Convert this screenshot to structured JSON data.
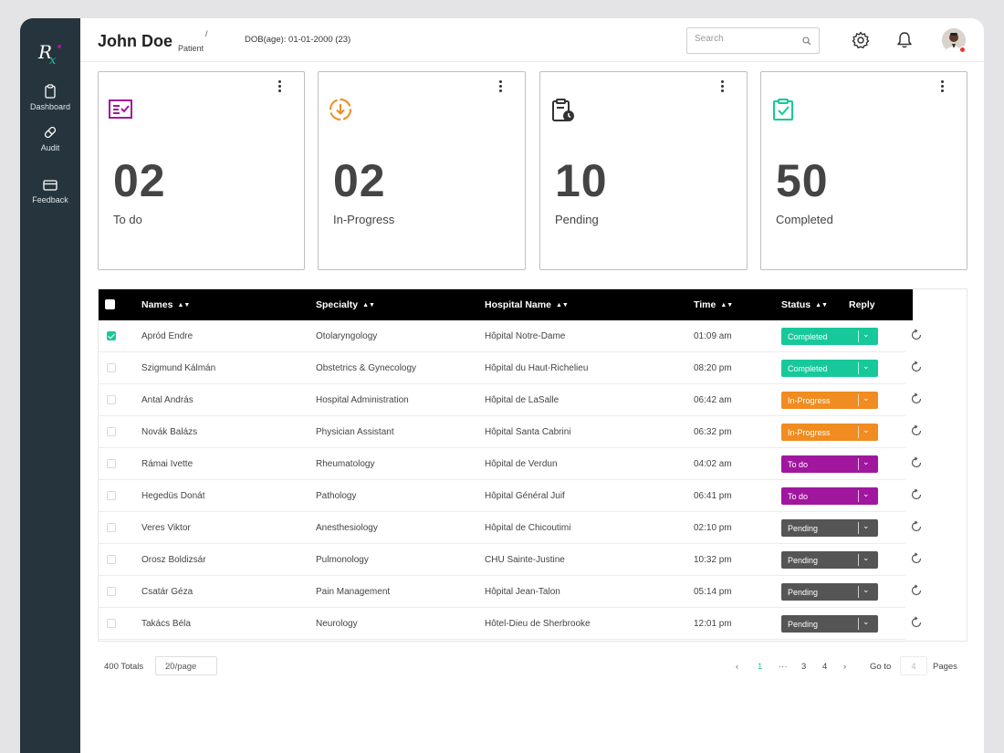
{
  "app": {
    "logo": "Rx"
  },
  "sidebar": {
    "items": [
      {
        "label": "Dashboard",
        "icon": "clipboard-icon"
      },
      {
        "label": "Audit",
        "icon": "pill-icon"
      },
      {
        "label": "Feedback",
        "icon": "card-icon"
      }
    ]
  },
  "header": {
    "name": "John Doe",
    "separator": "/",
    "role": "Patient",
    "dob": "DOB(age): 01-01-2000 (23)",
    "search_placeholder": "Search"
  },
  "cards": [
    {
      "count": "02",
      "label": "To do",
      "icon": "task-list-icon",
      "color": "#a0179e"
    },
    {
      "count": "02",
      "label": "In-Progress",
      "icon": "circle-arrow-down-icon",
      "color": "#f08c20"
    },
    {
      "count": "10",
      "label": "Pending",
      "icon": "clipboard-clock-icon",
      "color": "#333333"
    },
    {
      "count": "50",
      "label": "Completed",
      "icon": "clipboard-check-icon",
      "color": "#17c99a"
    }
  ],
  "table": {
    "columns": [
      "Names",
      "Specialty",
      "Hospital Name",
      "Time",
      "Status",
      "Reply"
    ],
    "rows": [
      {
        "name": "Apród Endre",
        "specialty": "Otolaryngology",
        "hospital": "Hôpital Notre-Dame",
        "time": "01:09 am",
        "status": "Completed",
        "checked": true
      },
      {
        "name": "Szigmund Kálmán",
        "specialty": "Obstetrics & Gynecology",
        "hospital": "Hôpital du Haut-Richelieu",
        "time": "08:20 pm",
        "status": "Completed",
        "checked": false
      },
      {
        "name": "Antal András",
        "specialty": "Hospital Administration",
        "hospital": "Hôpital de LaSalle",
        "time": "06:42 am",
        "status": "In-Progress",
        "checked": false
      },
      {
        "name": "Novák Balázs",
        "specialty": "Physician Assistant",
        "hospital": "Hôpital Santa Cabrini",
        "time": "06:32 pm",
        "status": "In-Progress",
        "checked": false
      },
      {
        "name": "Rámai Ivette",
        "specialty": "Rheumatology",
        "hospital": "Hôpital de Verdun",
        "time": "04:02 am",
        "status": "To do",
        "checked": false
      },
      {
        "name": "Hegedüs Donát",
        "specialty": "Pathology",
        "hospital": "Hôpital Général Juif",
        "time": "06:41 pm",
        "status": "To do",
        "checked": false
      },
      {
        "name": "Veres Viktor",
        "specialty": "Anesthesiology",
        "hospital": "Hôpital de Chicoutimi",
        "time": "02:10 pm",
        "status": "Pending",
        "checked": false
      },
      {
        "name": "Orosz Boldizsár",
        "specialty": "Pulmonology",
        "hospital": "CHU Sainte-Justine",
        "time": "10:32 pm",
        "status": "Pending",
        "checked": false
      },
      {
        "name": "Csatár Géza",
        "specialty": "Pain Management",
        "hospital": "Hôpital Jean-Talon",
        "time": "05:14 pm",
        "status": "Pending",
        "checked": false
      },
      {
        "name": "Takács Béla",
        "specialty": "Neurology",
        "hospital": "Hôtel-Dieu de Sherbrooke",
        "time": "12:01 pm",
        "status": "Pending",
        "checked": false
      }
    ],
    "status_colors": {
      "Completed": "#17c99a",
      "In-Progress": "#f08c20",
      "To do": "#a0179e",
      "Pending": "#555555"
    }
  },
  "pagination": {
    "totals": "400 Totals",
    "per_page": "20/page",
    "pages": [
      "1",
      "···",
      "3",
      "4"
    ],
    "current": "1",
    "goto_label": "Go to",
    "goto_value": "4",
    "pages_label": "Pages"
  }
}
